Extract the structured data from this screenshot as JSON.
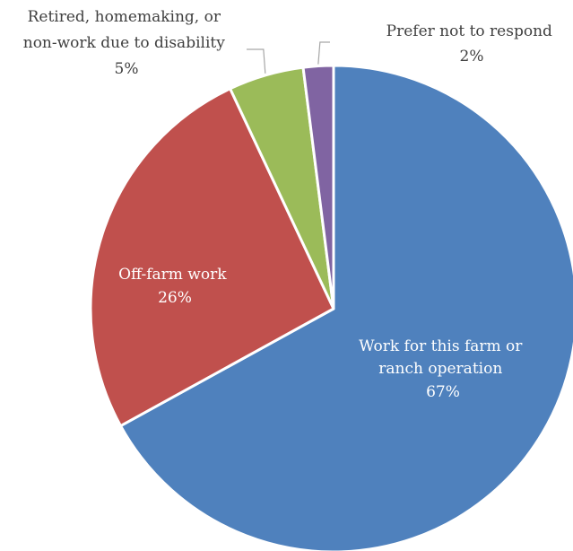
{
  "chart_data": {
    "type": "pie",
    "title": "",
    "slices": [
      {
        "label_lines": [
          "Work for this farm or",
          "ranch operation"
        ],
        "pct_label": "67%",
        "value": 67,
        "color": "#4F81BD"
      },
      {
        "label_lines": [
          "Off-farm work"
        ],
        "pct_label": "26%",
        "value": 26,
        "color": "#C0504D"
      },
      {
        "label_lines": [
          "Retired, homemaking, or",
          "non-work due to disability"
        ],
        "pct_label": "5%",
        "value": 5,
        "color": "#9BBB59"
      },
      {
        "label_lines": [
          "Prefer not to respond"
        ],
        "pct_label": "2%",
        "value": 2,
        "color": "#8064A2"
      }
    ],
    "start_angle_deg": 0,
    "direction": "clockwise",
    "legend": "none"
  }
}
